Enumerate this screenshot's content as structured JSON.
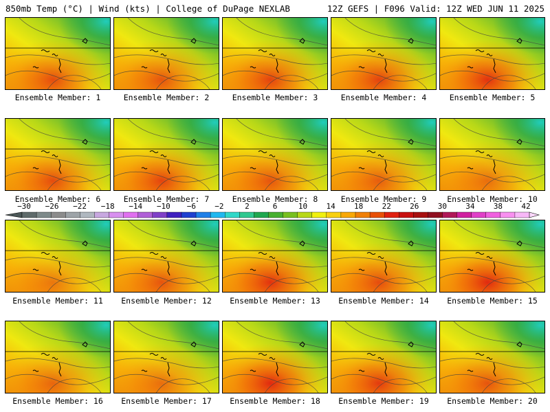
{
  "header": {
    "title_left": "850mb Temp (°C) | Wind (kts) | College of DuPage NEXLAB",
    "title_right": "12Z GEFS | F096 Valid: 12Z WED JUN 11 2025"
  },
  "colorbar": {
    "labels": [
      "-30",
      "-26",
      "-22",
      "-18",
      "-14",
      "-10",
      "-6",
      "-2",
      "2",
      "6",
      "10",
      "14",
      "18",
      "22",
      "26",
      "30",
      "34",
      "38",
      "42"
    ],
    "colors": [
      "#5f6b6b",
      "#7e8a8a",
      "#8c8c8c",
      "#9ea4a8",
      "#b0b8c0",
      "#c8a8e0",
      "#d890f0",
      "#e070f0",
      "#b060d8",
      "#8040c8",
      "#4020c0",
      "#2040d0",
      "#2080e8",
      "#20b8f0",
      "#30d8c8",
      "#30c890",
      "#20a850",
      "#48b030",
      "#78c020",
      "#b8d818",
      "#f0f010",
      "#f8d010",
      "#f8a808",
      "#f08008",
      "#e85008",
      "#e02010",
      "#c81010",
      "#a81010",
      "#901020",
      "#b01858",
      "#d020a0",
      "#e040c8",
      "#f060e0",
      "#f890f0",
      "#f8b8f8"
    ]
  },
  "members": [
    {
      "label": "Ensemble Member: 1",
      "hot": 0.75
    },
    {
      "label": "Ensemble Member: 2",
      "hot": 0.7
    },
    {
      "label": "Ensemble Member: 3",
      "hot": 0.8
    },
    {
      "label": "Ensemble Member: 4",
      "hot": 0.8
    },
    {
      "label": "Ensemble Member: 5",
      "hot": 0.9
    },
    {
      "label": "Ensemble Member: 6",
      "hot": 0.75
    },
    {
      "label": "Ensemble Member: 7",
      "hot": 0.8
    },
    {
      "label": "Ensemble Member: 8",
      "hot": 0.7
    },
    {
      "label": "Ensemble Member: 9",
      "hot": 0.65
    },
    {
      "label": "Ensemble Member: 10",
      "hot": 0.55
    },
    {
      "label": "Ensemble Member: 11",
      "hot": 0.5
    },
    {
      "label": "Ensemble Member: 12",
      "hot": 0.7
    },
    {
      "label": "Ensemble Member: 13",
      "hot": 0.9
    },
    {
      "label": "Ensemble Member: 14",
      "hot": 0.75
    },
    {
      "label": "Ensemble Member: 15",
      "hot": 0.95
    },
    {
      "label": "Ensemble Member: 16",
      "hot": 0.6
    },
    {
      "label": "Ensemble Member: 17",
      "hot": 0.55
    },
    {
      "label": "Ensemble Member: 18",
      "hot": 0.95
    },
    {
      "label": "Ensemble Member: 19",
      "hot": 0.85
    },
    {
      "label": "Ensemble Member: 20",
      "hot": 0.7
    }
  ]
}
